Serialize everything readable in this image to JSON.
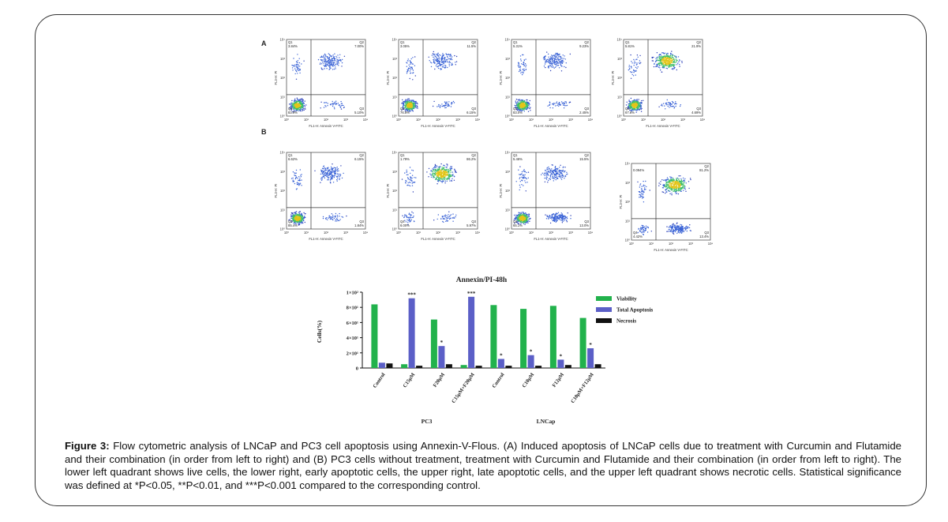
{
  "panels": {
    "A": {
      "label": "A",
      "plots": [
        {
          "q1": "Q1",
          "q2": "Q2",
          "q3": "Q3",
          "q4": "Q4",
          "q1_val": "3.84%",
          "q2_val": "7.00%",
          "q3_val": "5.10%",
          "q4_val": "83.9%",
          "live_density": "high",
          "late_density": "medium",
          "early_density": "low",
          "necrotic_density": "low"
        },
        {
          "q1": "Q1",
          "q2": "Q2",
          "q3": "Q3",
          "q4": "Q4",
          "q1_val": "3.05%",
          "q2_val": "11.5%",
          "q3_val": "6.15%",
          "q4_val": "76.8%",
          "live_density": "high",
          "late_density": "medium",
          "early_density": "low",
          "necrotic_density": "low"
        },
        {
          "q1": "Q1",
          "q2": "Q2",
          "q3": "Q3",
          "q4": "Q4",
          "q1_val": "5.31%",
          "q2_val": "9.23%",
          "q3_val": "2.45%",
          "q4_val": "83.0%",
          "live_density": "high",
          "late_density": "medium",
          "early_density": "low",
          "necrotic_density": "low"
        },
        {
          "q1": "Q1",
          "q2": "Q2",
          "q3": "Q3",
          "q4": "Q4",
          "q1_val": "5.81%",
          "q2_val": "21.9%",
          "q3_val": "4.69%",
          "q4_val": "67.6%",
          "live_density": "high",
          "late_density": "high",
          "early_density": "low",
          "necrotic_density": "low"
        }
      ]
    },
    "B": {
      "label": "B",
      "plots": [
        {
          "q1": "Q1",
          "q2": "Q2",
          "q3": "Q3",
          "q4": "Q4",
          "q1_val": "6.62%",
          "q2_val": "6.15%",
          "q3_val": "1.84%",
          "q4_val": "85.4%",
          "live_density": "high",
          "late_density": "medium",
          "early_density": "low",
          "necrotic_density": "low"
        },
        {
          "q1": "Q1",
          "q2": "Q2",
          "q3": "Q3",
          "q4": "Q4",
          "q1_val": "1.79%",
          "q2_val": "86.2%",
          "q3_val": "5.97%",
          "q4_val": "6.00%",
          "live_density": "low",
          "late_density": "high",
          "early_density": "low",
          "necrotic_density": "low"
        },
        {
          "q1": "Q1",
          "q2": "Q2",
          "q3": "Q3",
          "q4": "Q4",
          "q1_val": "5.46%",
          "q2_val": "15.5%",
          "q3_val": "13.0%",
          "q4_val": "65.1%",
          "live_density": "high",
          "late_density": "medium",
          "early_density": "medium",
          "necrotic_density": "low"
        },
        {
          "q1": "",
          "q2": "Q2",
          "q3": "Q3",
          "q4": "Q4",
          "q1_val": "0.094%",
          "q2_val": "81.2%",
          "q3_val": "13.4%",
          "q4_val": "4.42%",
          "live_density": "low",
          "late_density": "high",
          "early_density": "medium",
          "necrotic_density": "low"
        }
      ]
    },
    "xlabel": "FL1-H: Annexin V-FITC",
    "ylabel": "FL3-H: PI",
    "ticks": [
      "10⁰",
      "10¹",
      "10²",
      "10³",
      "10⁴"
    ]
  },
  "chart_data": {
    "type": "bar",
    "title": "Annexin/PI-48h",
    "ylabel": "Cells(%)",
    "ytick_labels": [
      "0",
      "2×10¹",
      "4×10¹",
      "6×10¹",
      "8×10¹",
      "1×10²"
    ],
    "ylim": [
      0,
      100
    ],
    "categories": [
      "Control",
      "C15μM",
      "F20μM",
      "C15μM+F20μM",
      "Control",
      "C10μM",
      "F12μM",
      "C10μM+F12μM"
    ],
    "groups": [
      {
        "name": "PC3",
        "start": 0,
        "end": 3
      },
      {
        "name": "LNCap",
        "start": 4,
        "end": 7
      }
    ],
    "series": [
      {
        "name": "Viability",
        "color": "#22b24c",
        "values": [
          84,
          5,
          64,
          4,
          83,
          78,
          82,
          66
        ]
      },
      {
        "name": "Total Apoptosis",
        "color": "#5b5fc7",
        "values": [
          7,
          92,
          29,
          94,
          12,
          17,
          11,
          26
        ]
      },
      {
        "name": "Necrosis",
        "color": "#111111",
        "values": [
          6,
          3,
          5,
          3,
          3,
          3,
          4,
          5
        ]
      }
    ],
    "annotations": [
      {
        "category": 1,
        "series": 1,
        "text": "***"
      },
      {
        "category": 2,
        "series": 1,
        "text": "*"
      },
      {
        "category": 3,
        "series": 1,
        "text": "***"
      },
      {
        "category": 4,
        "series": 1,
        "text": "*"
      },
      {
        "category": 5,
        "series": 1,
        "text": "*"
      },
      {
        "category": 6,
        "series": 1,
        "text": "*"
      },
      {
        "category": 7,
        "series": 1,
        "text": "*"
      }
    ],
    "legend_position": "right"
  },
  "caption": {
    "label": "Figure 3:",
    "text": " Flow cytometric analysis of LNCaP and PC3 cell apoptosis using Annexin-V-Flous.  (A) Induced apoptosis of LNCaP cells due to treatment with Curcumin and Flutamide and their combination (in order from left to right) and (B) PC3 cells without treatment, treatment with Curcumin and Flutamide and their combination (in order from left to right). The lower left quadrant shows live cells, the lower right, early apoptotic cells, the upper right, late apoptotic cells, and the upper left quadrant shows necrotic cells. Statistical significance was defined at *P<0.05, **P<0.01, and ***P<0.001 compared to the corresponding control."
  }
}
